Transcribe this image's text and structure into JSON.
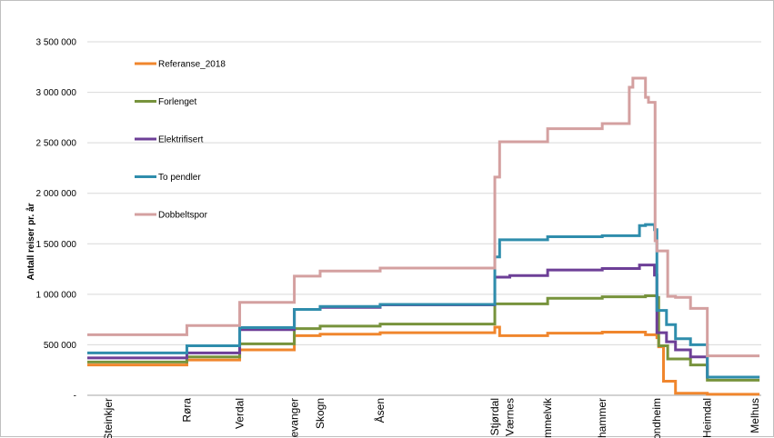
{
  "chart_data": {
    "type": "line",
    "title": "",
    "xlabel": "",
    "ylabel": "Antall reiser pr. år",
    "ylim": [
      0,
      3500000
    ],
    "y_ticks": [
      "-",
      "500 000",
      "1 000 000",
      "1 500 000",
      "2 000 000",
      "2 500 000",
      "3 000 000",
      "3 500 000"
    ],
    "y_tick_values": [
      0,
      500000,
      1000000,
      1500000,
      2000000,
      2500000,
      3000000,
      3500000
    ],
    "grid": "horizontal",
    "legend_position": "top-left (inside plot)",
    "line_style": "step",
    "x_range": [
      0,
      100
    ],
    "stations": [
      {
        "name": "Steinkjer",
        "x": 0
      },
      {
        "name": "Røra",
        "x": 13.1
      },
      {
        "name": "Verdal",
        "x": 21.9
      },
      {
        "name": "Levanger",
        "x": 31.0
      },
      {
        "name": "Skogn",
        "x": 35.3
      },
      {
        "name": "Åsen",
        "x": 45.3
      },
      {
        "name": "Stjørdal",
        "x": 64.4
      },
      {
        "name": "Værnes",
        "x": 66.9
      },
      {
        "name": "Hommelvik",
        "x": 73.2
      },
      {
        "name": "Vikhammer",
        "x": 82.3
      },
      {
        "name": "Trondheim",
        "x": 91.4
      },
      {
        "name": "Heimdal",
        "x": 99.8
      },
      {
        "name": "Melhus",
        "x": 107.7
      }
    ],
    "series": [
      {
        "name": "Referanse_2018",
        "color": "#f0862d",
        "points": [
          [
            -10,
            300000
          ],
          [
            13.1,
            350000
          ],
          [
            21.9,
            450000
          ],
          [
            31,
            590000
          ],
          [
            35.3,
            605000
          ],
          [
            45.3,
            620000
          ],
          [
            64.4,
            675000
          ],
          [
            65.2,
            590000
          ],
          [
            73.2,
            615000
          ],
          [
            82.3,
            625000
          ],
          [
            89.5,
            600000
          ],
          [
            91.4,
            570000
          ],
          [
            91.7,
            480000
          ],
          [
            92.5,
            140000
          ],
          [
            94.5,
            20000
          ],
          [
            99.8,
            10000
          ],
          [
            108.5,
            10000
          ]
        ]
      },
      {
        "name": "Forlenget",
        "color": "#77933c",
        "points": [
          [
            -10,
            330000
          ],
          [
            13.1,
            380000
          ],
          [
            21.9,
            510000
          ],
          [
            31,
            660000
          ],
          [
            35.3,
            685000
          ],
          [
            45.3,
            705000
          ],
          [
            64.4,
            905000
          ],
          [
            73.2,
            960000
          ],
          [
            82.3,
            975000
          ],
          [
            89.5,
            985000
          ],
          [
            91.4,
            970000
          ],
          [
            91.7,
            490000
          ],
          [
            93.2,
            360000
          ],
          [
            97,
            300000
          ],
          [
            99.8,
            150000
          ],
          [
            108.5,
            150000
          ]
        ]
      },
      {
        "name": "Elektrifisert",
        "color": "#6d3f97",
        "points": [
          [
            -10,
            370000
          ],
          [
            13.1,
            420000
          ],
          [
            21.9,
            650000
          ],
          [
            31,
            850000
          ],
          [
            35.3,
            870000
          ],
          [
            45.3,
            895000
          ],
          [
            64.4,
            1170000
          ],
          [
            66.9,
            1185000
          ],
          [
            73.2,
            1240000
          ],
          [
            82.3,
            1255000
          ],
          [
            88.5,
            1290000
          ],
          [
            91,
            1190000
          ],
          [
            91.4,
            620000
          ],
          [
            93,
            530000
          ],
          [
            94.5,
            450000
          ],
          [
            97,
            380000
          ],
          [
            99.8,
            180000
          ],
          [
            108.5,
            180000
          ]
        ]
      },
      {
        "name": "To pendler",
        "color": "#2f8dac",
        "points": [
          [
            -10,
            420000
          ],
          [
            13.1,
            490000
          ],
          [
            21.9,
            670000
          ],
          [
            31,
            850000
          ],
          [
            35.3,
            880000
          ],
          [
            45.3,
            900000
          ],
          [
            64.4,
            1370000
          ],
          [
            65.2,
            1540000
          ],
          [
            73.2,
            1570000
          ],
          [
            82.3,
            1580000
          ],
          [
            88.5,
            1680000
          ],
          [
            89.5,
            1690000
          ],
          [
            91,
            1640000
          ],
          [
            91.4,
            840000
          ],
          [
            93,
            700000
          ],
          [
            94.5,
            560000
          ],
          [
            97,
            500000
          ],
          [
            99.8,
            180000
          ],
          [
            108.5,
            180000
          ]
        ]
      },
      {
        "name": "Dobbeltspor",
        "color": "#d4a0a0",
        "points": [
          [
            -10,
            600000
          ],
          [
            13.1,
            690000
          ],
          [
            21.9,
            920000
          ],
          [
            31,
            1180000
          ],
          [
            35.3,
            1230000
          ],
          [
            45.3,
            1260000
          ],
          [
            64.4,
            2160000
          ],
          [
            65.2,
            2510000
          ],
          [
            73.2,
            2640000
          ],
          [
            82.3,
            2690000
          ],
          [
            86.8,
            3050000
          ],
          [
            87.4,
            3140000
          ],
          [
            89.5,
            2950000
          ],
          [
            90,
            2900000
          ],
          [
            91.1,
            1530000
          ],
          [
            91.4,
            1430000
          ],
          [
            93.2,
            980000
          ],
          [
            94.5,
            970000
          ],
          [
            97,
            860000
          ],
          [
            99.8,
            390000
          ],
          [
            108.5,
            390000
          ]
        ]
      }
    ]
  }
}
